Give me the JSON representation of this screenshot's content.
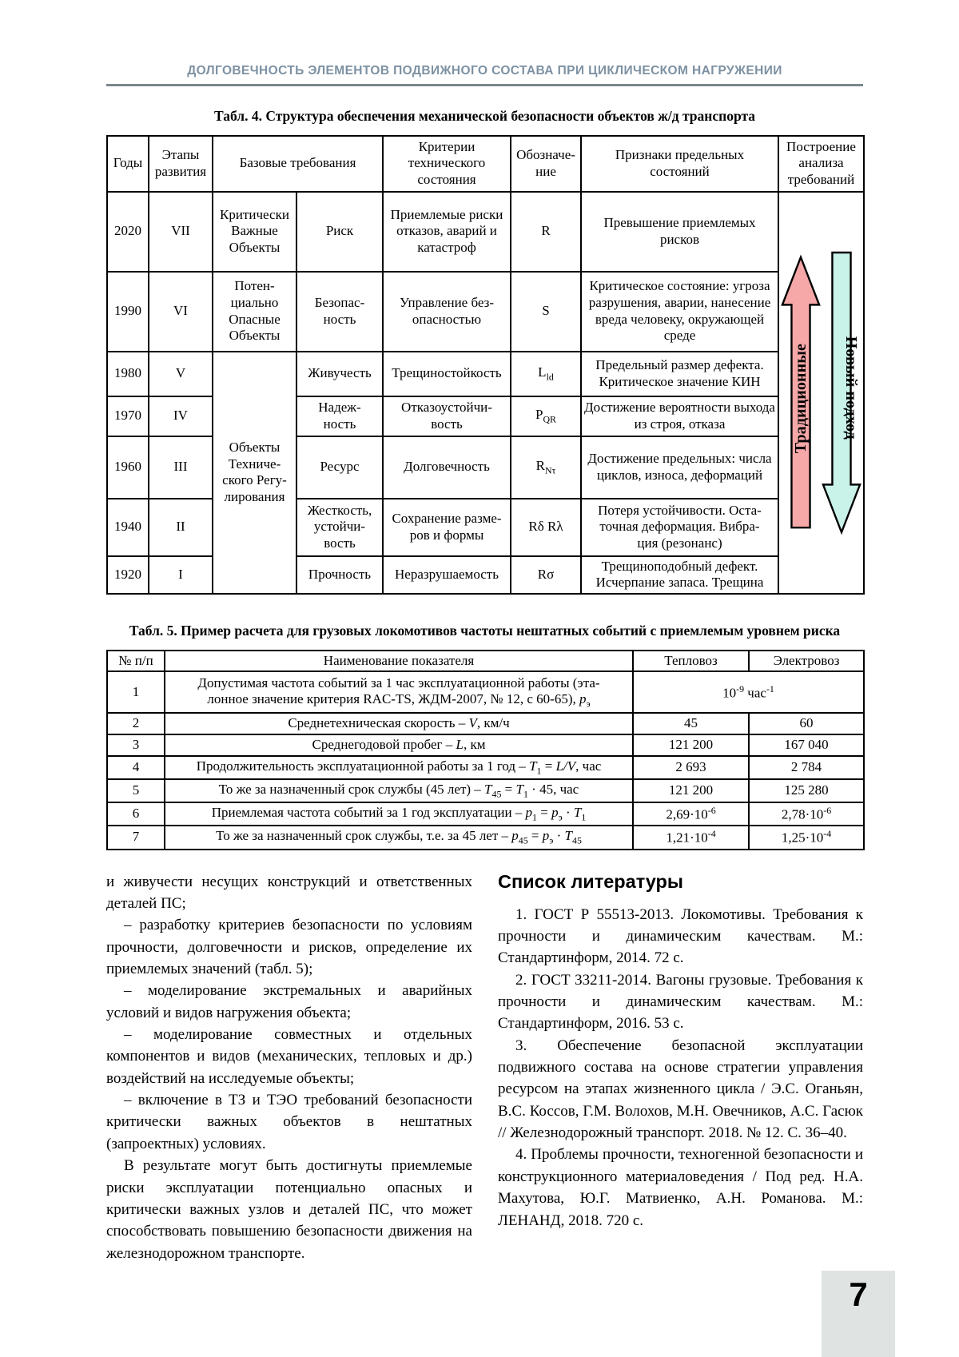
{
  "header": {
    "journal_title": "ДОЛГОВЕЧНОСТЬ ЭЛЕМЕНТОВ ПОДВИЖНОГО СОСТАВА ПРИ ЦИКЛИЧЕСКОМ НАГРУЖЕНИИ"
  },
  "table4": {
    "title": "Табл. 4. Структура обеспечения механической безопасности объектов ж/д транспорта",
    "col_headers": {
      "years": "Годы",
      "stages": "Этапы развития",
      "base_requirements": "Базовые требования",
      "criteria": "Критерии технического состояния",
      "designation": "Обозначе-<br>ние",
      "signs": "Признаки предельных состояний",
      "analysis": "Построение анализа требований"
    },
    "tech_reg_object": "Объекты<br>Техниче-<br>ского Регу-<br>лирования",
    "rows": [
      {
        "year": "2020",
        "stage": "VII",
        "object": "Критически Важные Объекты",
        "requirement": "Риск",
        "criterion": "Приемлемые риски отказов, аварий и катастроф",
        "symbol": "R",
        "signs": "Превышение приемлемых рисков"
      },
      {
        "year": "1990",
        "stage": "VI",
        "object": "Потен-<br>циально Опасные Объекты",
        "requirement": "Безопас-<br>ность",
        "criterion": "Управление без-<br>опасностью",
        "symbol": "S",
        "signs": "Критическое состояние: угроза разрушения, аварии, нанесение вреда человеку, окружающей среде"
      },
      {
        "year": "1980",
        "stage": "V",
        "requirement": "Живучесть",
        "criterion": "Трещиностойкость",
        "symbol": "L<sub>ld</sub>",
        "signs": "Предельный размер дефекта. Критическое значение КИН"
      },
      {
        "year": "1970",
        "stage": "IV",
        "requirement": "Надеж-<br>ность",
        "criterion": "Отказоустойчи-<br>вость",
        "symbol": "P<sub>QR</sub>",
        "signs": "Достижение вероятности выхода из строя, отказа"
      },
      {
        "year": "1960",
        "stage": "III",
        "requirement": "Ресурс",
        "criterion": "Долговечность",
        "symbol": "R<sub>Nτ</sub>",
        "signs": "Достижение предельных: числа циклов, износа, деформаций"
      },
      {
        "year": "1940",
        "stage": "II",
        "requirement": "Жесткость,<br>устойчи-<br>вость",
        "criterion": "Сохранение разме-<br>ров и формы",
        "symbol": "Rδ Rλ",
        "signs": "Потеря устойчивости. Оста-<br>точная деформация. Вибра-<br>ция (резонанс)"
      },
      {
        "year": "1920",
        "stage": "I",
        "requirement": "Прочность",
        "criterion": "Неразрушаемость",
        "symbol": "Rσ",
        "signs": "Трещиноподобный дефект. Исчерпание запаса. Трещина"
      }
    ],
    "arrow_up": {
      "label": "Традиционные",
      "color": "#f6a8a8"
    },
    "arrow_down": {
      "label": "Новый подход",
      "color": "#c9f2e8"
    }
  },
  "table5": {
    "title": "Табл. 5. Пример расчета для грузовых локомотивов частоты нештатных событий с приемлемым уровнем риска",
    "col_headers": {
      "num": "№ п/п",
      "name": "Наименование показателя",
      "diesel": "Тепловоз",
      "electric": "Электровоз"
    },
    "rows": [
      {
        "num": "1",
        "name": "Допустимая частота событий за 1 час эксплуатационной работы (эта-<br>лонное значение критерия RAC-TS, ЖДМ-2007, № 12, с 60-65), <i>p</i><sub>э</sub>",
        "merged_value": "10<sup>-9</sup> час<sup>-1</sup>"
      },
      {
        "num": "2",
        "name": "Среднетехническая скорость – <i>V</i>, км/ч",
        "diesel": "45",
        "electric": "60"
      },
      {
        "num": "3",
        "name": "Среднегодовой пробег – <i>L</i>, км",
        "diesel": "121 200",
        "electric": "167 040"
      },
      {
        "num": "4",
        "name": "Продолжительность эксплуатационной работы за 1 год – <i>T</i><sub>1</sub> = <i>L/V</i>, час",
        "diesel": "2 693",
        "electric": "2 784"
      },
      {
        "num": "5",
        "name": "То же за назначенный срок службы (45 лет) – <i>T</i><sub>45</sub> = <i>T</i><sub>1</sub> · 45, час",
        "diesel": "121 200",
        "electric": "125 280"
      },
      {
        "num": "6",
        "name": "Приемлемая частота событий за 1 год эксплуатации – <i>p</i><sub>1</sub> = <i>p</i><sub>э</sub> · <i>T</i><sub>1</sub>",
        "diesel": "2,69·10<sup>-6</sup>",
        "electric": "2,78·10<sup>-6</sup>"
      },
      {
        "num": "7",
        "name": "То же за назначенный срок службы, т.е. за 45 лет – <i>p</i><sub>45</sub> = <i>p</i><sub>э</sub> · <i>T</i><sub>45</sub>",
        "diesel": "1,21·10<sup>-4</sup>",
        "electric": "1,25·10<sup>-4</sup>"
      }
    ]
  },
  "body": {
    "left_paragraphs": [
      "и живучести несущих конструкций и ответственных деталей ПС;",
      "– разработку критериев безопасности по условиям прочности, долговечности и рисков, определение их приемлемых значений (табл. 5);",
      "– моделирование экстремальных и аварийных условий и видов нагружения объекта;",
      "– моделирование совместных и отдельных компонентов и видов (механических, тепловых и др.) воздействий на исследуемые объекты;",
      "– включение в ТЗ и ТЭО требований безопасности критически важных объектов в нештатных (запроектных) условиях.",
      "В результате могут быть достигнуты приемлемые риски эксплуатации потенциально опасных и критически важных узлов и деталей ПС, что может способствовать повышению безопасности движения на железнодорожном транспорте."
    ],
    "literature": {
      "heading": "Список литературы",
      "references": [
        "1. ГОСТ Р 55513-2013. Локомотивы. Требования к прочности и динамическим качествам. М.: Стандартинформ, 2014. 72 с.",
        "2. ГОСТ 33211-2014. Вагоны грузовые. Требования к прочности и динамическим качествам. М.: Стандартинформ, 2016. 53 с.",
        "3. Обеспечение безопасной эксплуатации подвижного состава на основе стратегии управления ресурсом на этапах жизненного цикла / Э.С. Оганьян, В.С. Коссов, Г.М. Волохов, М.Н. Овечников, А.С. Гасюк // Железнодорожный транспорт. 2018. № 12. С. 36–40.",
        "4. Проблемы прочности, техногенной безопасности и конструкционного материаловедения / Под ред. Н.А. Махутова, Ю.Г. Матвиенко, А.Н. Романова. М.: ЛЕНАНД, 2018. 720 с."
      ]
    }
  },
  "footer": {
    "page_number": "7"
  }
}
